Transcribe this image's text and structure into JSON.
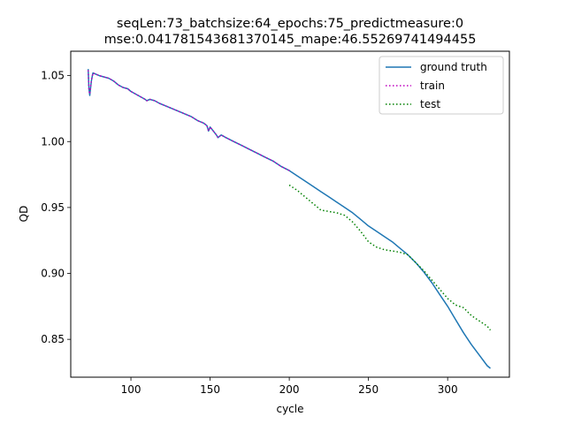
{
  "chart_data": {
    "type": "line",
    "title_line1": "seqLen:73_batchsize:64_epochs:75_predictmeasure:0",
    "title_line2": "mse:0.041781543681370145_mape:46.55269741494455",
    "xlabel": "cycle",
    "ylabel": "QD",
    "xlim": [
      62,
      339
    ],
    "ylim": [
      0.8213,
      1.0685
    ],
    "xticks": [
      100,
      150,
      200,
      250,
      300
    ],
    "xtick_labels": [
      "100",
      "150",
      "200",
      "250",
      "300"
    ],
    "yticks": [
      0.85,
      0.9,
      0.95,
      1.0,
      1.05
    ],
    "ytick_labels": [
      "0.85",
      "0.90",
      "0.95",
      "1.00",
      "1.05"
    ],
    "grid": false,
    "legend_placement": "top-right",
    "series": [
      {
        "name": "ground truth",
        "color": "#1f77b4",
        "style": "solid",
        "points": [
          [
            73,
            1.055
          ],
          [
            73.5,
            1.04
          ],
          [
            74,
            1.035
          ],
          [
            75,
            1.046
          ],
          [
            76,
            1.052
          ],
          [
            78,
            1.051
          ],
          [
            80,
            1.05
          ],
          [
            83,
            1.049
          ],
          [
            86,
            1.048
          ],
          [
            89,
            1.046
          ],
          [
            92,
            1.043
          ],
          [
            95,
            1.041
          ],
          [
            98,
            1.04
          ],
          [
            100,
            1.038
          ],
          [
            103,
            1.036
          ],
          [
            106,
            1.034
          ],
          [
            109,
            1.032
          ],
          [
            110,
            1.031
          ],
          [
            112,
            1.032
          ],
          [
            115,
            1.031
          ],
          [
            118,
            1.029
          ],
          [
            122,
            1.027
          ],
          [
            126,
            1.025
          ],
          [
            130,
            1.023
          ],
          [
            134,
            1.021
          ],
          [
            138,
            1.019
          ],
          [
            142,
            1.016
          ],
          [
            146,
            1.014
          ],
          [
            148,
            1.012
          ],
          [
            149,
            1.008
          ],
          [
            150,
            1.011
          ],
          [
            152,
            1.008
          ],
          [
            154,
            1.005
          ],
          [
            155,
            1.003
          ],
          [
            157,
            1.005
          ],
          [
            160,
            1.003
          ],
          [
            165,
            1.0
          ],
          [
            170,
            0.997
          ],
          [
            175,
            0.994
          ],
          [
            180,
            0.991
          ],
          [
            185,
            0.988
          ],
          [
            190,
            0.985
          ],
          [
            195,
            0.981
          ],
          [
            200,
            0.978
          ],
          [
            205,
            0.974
          ],
          [
            210,
            0.97
          ],
          [
            215,
            0.966
          ],
          [
            220,
            0.962
          ],
          [
            225,
            0.958
          ],
          [
            230,
            0.954
          ],
          [
            235,
            0.95
          ],
          [
            240,
            0.946
          ],
          [
            245,
            0.941
          ],
          [
            250,
            0.936
          ],
          [
            255,
            0.932
          ],
          [
            260,
            0.928
          ],
          [
            265,
            0.924
          ],
          [
            270,
            0.919
          ],
          [
            275,
            0.914
          ],
          [
            280,
            0.908
          ],
          [
            285,
            0.901
          ],
          [
            290,
            0.893
          ],
          [
            295,
            0.884
          ],
          [
            300,
            0.875
          ],
          [
            305,
            0.865
          ],
          [
            310,
            0.855
          ],
          [
            315,
            0.846
          ],
          [
            320,
            0.838
          ],
          [
            325,
            0.83
          ],
          [
            327,
            0.828
          ]
        ]
      },
      {
        "name": "train",
        "color": "#bf00bf",
        "style": "dotted",
        "points": [
          [
            73,
            1.054
          ],
          [
            73.5,
            1.039
          ],
          [
            74,
            1.036
          ],
          [
            75,
            1.046
          ],
          [
            76,
            1.052
          ],
          [
            78,
            1.051
          ],
          [
            80,
            1.05
          ],
          [
            83,
            1.049
          ],
          [
            86,
            1.048
          ],
          [
            89,
            1.046
          ],
          [
            92,
            1.043
          ],
          [
            95,
            1.041
          ],
          [
            98,
            1.04
          ],
          [
            100,
            1.038
          ],
          [
            103,
            1.036
          ],
          [
            106,
            1.034
          ],
          [
            109,
            1.032
          ],
          [
            110,
            1.031
          ],
          [
            112,
            1.032
          ],
          [
            115,
            1.031
          ],
          [
            118,
            1.029
          ],
          [
            122,
            1.027
          ],
          [
            126,
            1.025
          ],
          [
            130,
            1.023
          ],
          [
            134,
            1.021
          ],
          [
            138,
            1.019
          ],
          [
            142,
            1.016
          ],
          [
            146,
            1.014
          ],
          [
            148,
            1.012
          ],
          [
            149,
            1.008
          ],
          [
            150,
            1.011
          ],
          [
            152,
            1.008
          ],
          [
            154,
            1.005
          ],
          [
            155,
            1.003
          ],
          [
            157,
            1.005
          ],
          [
            160,
            1.003
          ],
          [
            165,
            1.0
          ],
          [
            170,
            0.997
          ],
          [
            175,
            0.994
          ],
          [
            180,
            0.991
          ],
          [
            185,
            0.988
          ],
          [
            190,
            0.985
          ],
          [
            195,
            0.981
          ],
          [
            200,
            0.978
          ]
        ]
      },
      {
        "name": "test",
        "color": "#008000",
        "style": "dotted",
        "points": [
          [
            200,
            0.967
          ],
          [
            205,
            0.963
          ],
          [
            210,
            0.958
          ],
          [
            215,
            0.953
          ],
          [
            220,
            0.948
          ],
          [
            225,
            0.947
          ],
          [
            230,
            0.946
          ],
          [
            235,
            0.944
          ],
          [
            240,
            0.939
          ],
          [
            245,
            0.932
          ],
          [
            250,
            0.924
          ],
          [
            255,
            0.92
          ],
          [
            260,
            0.918
          ],
          [
            265,
            0.917
          ],
          [
            270,
            0.916
          ],
          [
            275,
            0.914
          ],
          [
            280,
            0.908
          ],
          [
            285,
            0.902
          ],
          [
            290,
            0.895
          ],
          [
            295,
            0.888
          ],
          [
            300,
            0.881
          ],
          [
            305,
            0.876
          ],
          [
            310,
            0.874
          ],
          [
            315,
            0.868
          ],
          [
            320,
            0.864
          ],
          [
            325,
            0.86
          ],
          [
            327,
            0.857
          ]
        ]
      }
    ]
  }
}
